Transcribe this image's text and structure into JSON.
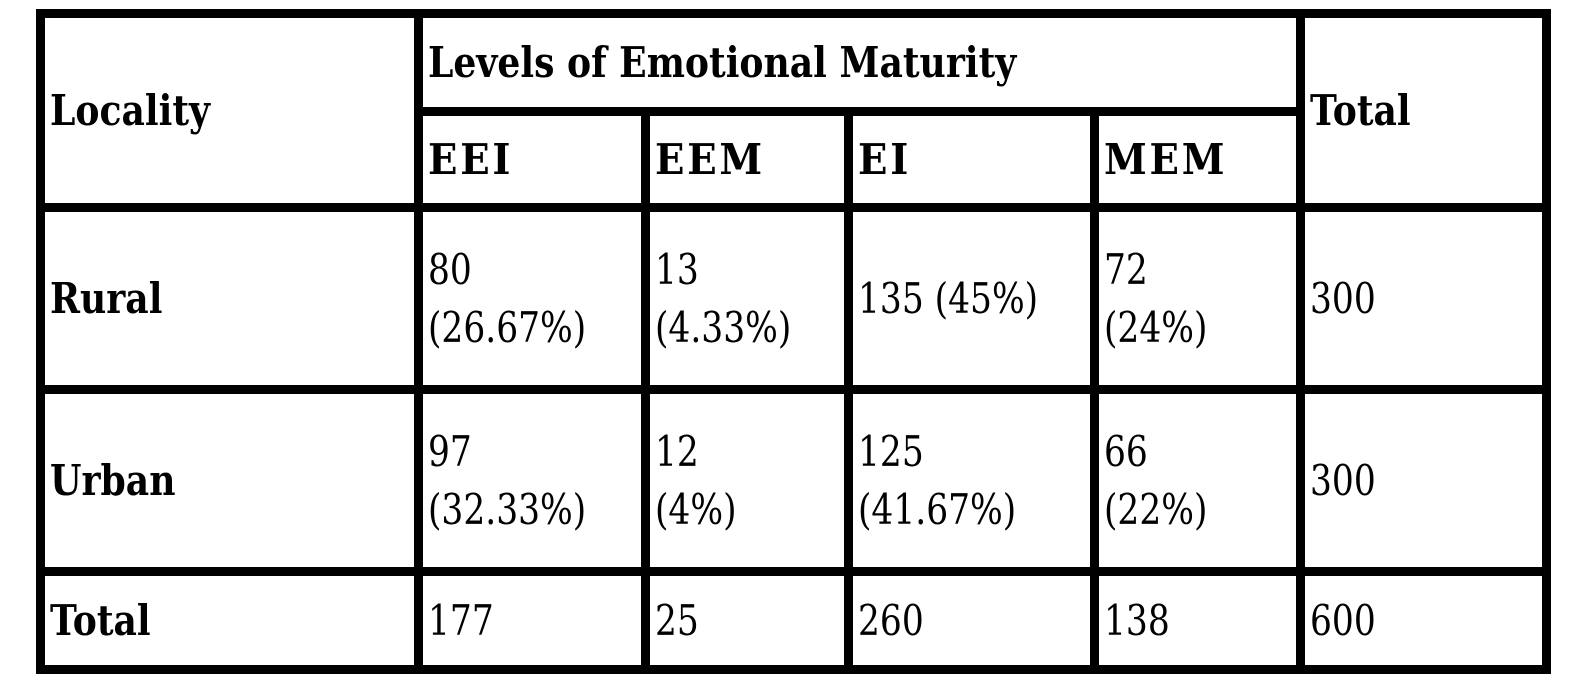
{
  "table": {
    "header": {
      "locality": "Locality",
      "levels": "Levels of Emotional Maturity",
      "total": "Total",
      "sub_columns": [
        "EEI",
        "EEM",
        "EI",
        "MEM"
      ]
    },
    "rows": [
      {
        "label": "Rural",
        "cells": [
          {
            "count": "80",
            "percent": "(26.67%)"
          },
          {
            "count": "13",
            "percent": "(4.33%)"
          },
          {
            "count": "135 (45%)",
            "percent": ""
          },
          {
            "count": "72",
            "percent": "(24%)"
          }
        ],
        "total": "300"
      },
      {
        "label": "Urban",
        "cells": [
          {
            "count": "97",
            "percent": "(32.33%)"
          },
          {
            "count": "12",
            "percent": "(4%)"
          },
          {
            "count": "125",
            "percent": "(41.67%)"
          },
          {
            "count": "66",
            "percent": "(22%)"
          }
        ],
        "total": "300"
      },
      {
        "label": "Total",
        "cells": [
          {
            "count": "177",
            "percent": ""
          },
          {
            "count": "25",
            "percent": ""
          },
          {
            "count": "260",
            "percent": ""
          },
          {
            "count": "138",
            "percent": ""
          }
        ],
        "total": "600"
      }
    ]
  }
}
